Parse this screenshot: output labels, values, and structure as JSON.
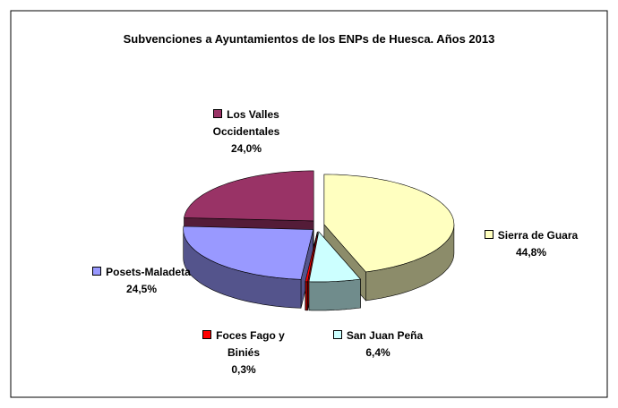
{
  "chart_data": {
    "type": "pie3d",
    "title": "Subvenciones a Ayuntamientos de los ENPs de Huesca. Años 2013",
    "categories": [
      "Sierra de Guara",
      "San Juan Peña",
      "Foces Fago y Biniés",
      "Posets-Maladeta",
      "Los Valles Occidentales"
    ],
    "values": [
      44.8,
      6.4,
      0.3,
      24.5,
      24.0
    ],
    "value_labels": [
      "44,8%",
      "6,4%",
      "0,3%",
      "24,5%",
      "24,0%"
    ],
    "colors": [
      "#ffffc0",
      "#ccffff",
      "#ff0000",
      "#9999ff",
      "#993366"
    ]
  }
}
